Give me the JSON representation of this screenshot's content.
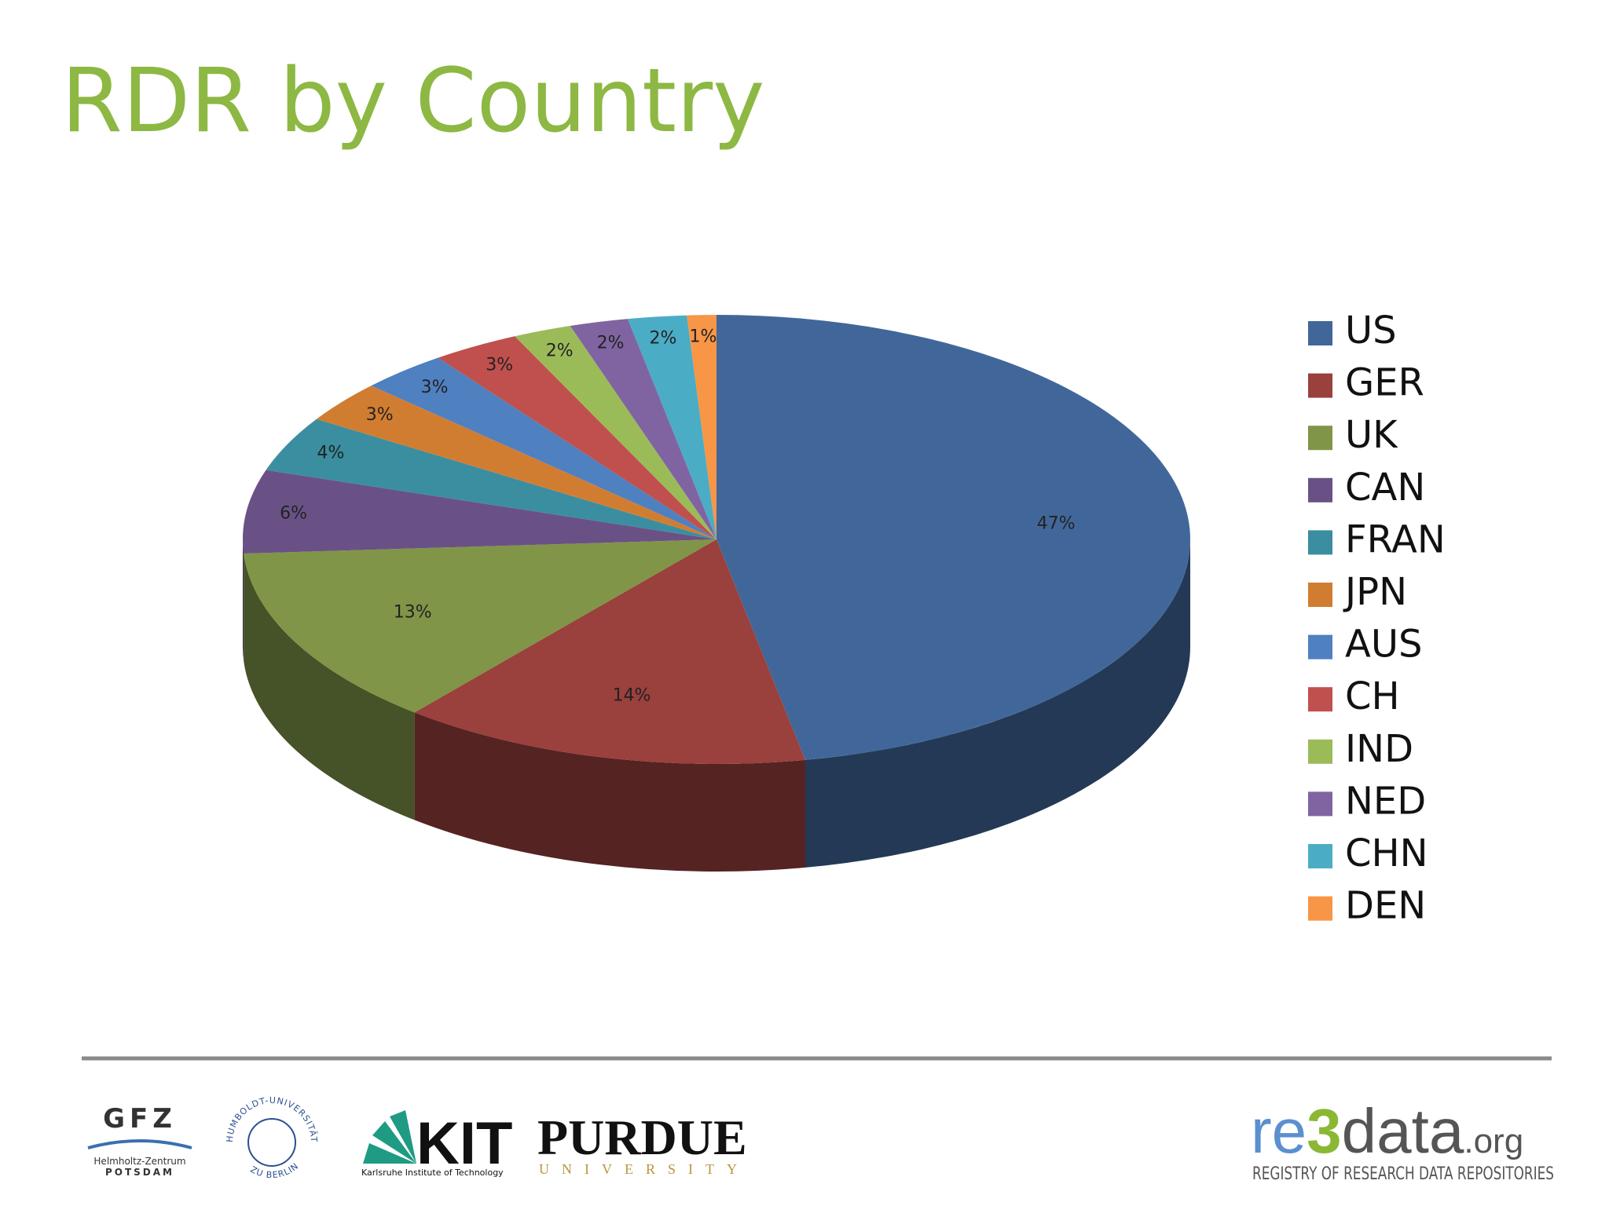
{
  "chart_data": {
    "type": "pie",
    "title": "RDR by Country",
    "categories": [
      "US",
      "GER",
      "UK",
      "CAN",
      "FRAN",
      "JPN",
      "AUS",
      "CH",
      "IND",
      "NED",
      "CHN",
      "DEN"
    ],
    "values": [
      47,
      14,
      13,
      6,
      4,
      3,
      3,
      3,
      2,
      2,
      2,
      1
    ],
    "value_labels": [
      "47%",
      "14%",
      "13%",
      "6%",
      "4%",
      "3%",
      "3%",
      "3%",
      "2%",
      "2%",
      "2%",
      "1%"
    ],
    "colors": [
      "#41679a",
      "#9a403d",
      "#809547",
      "#6a5185",
      "#3a8ea0",
      "#d17d31",
      "#4f80c0",
      "#c0504d",
      "#9bbb59",
      "#8064a2",
      "#4bacc6",
      "#f79646"
    ],
    "legend": "right"
  },
  "footer": {
    "gfz": {
      "name": "GFZ",
      "line1": "Helmholtz-Zentrum",
      "line2": "POTSDAM"
    },
    "humboldt": {
      "top": "HUMBOLDT-UNIVERSITÄT",
      "bottom": "ZU BERLIN"
    },
    "kit": {
      "name": "KIT",
      "caption": "Karlsruhe Institute of Technology"
    },
    "purdue": {
      "name": "PURDUE",
      "caption": "UNIVERSITY"
    },
    "re3data": {
      "parts": [
        "re",
        "3",
        "data",
        ".org"
      ],
      "caption": "REGISTRY OF RESEARCH DATA REPOSITORIES"
    }
  }
}
